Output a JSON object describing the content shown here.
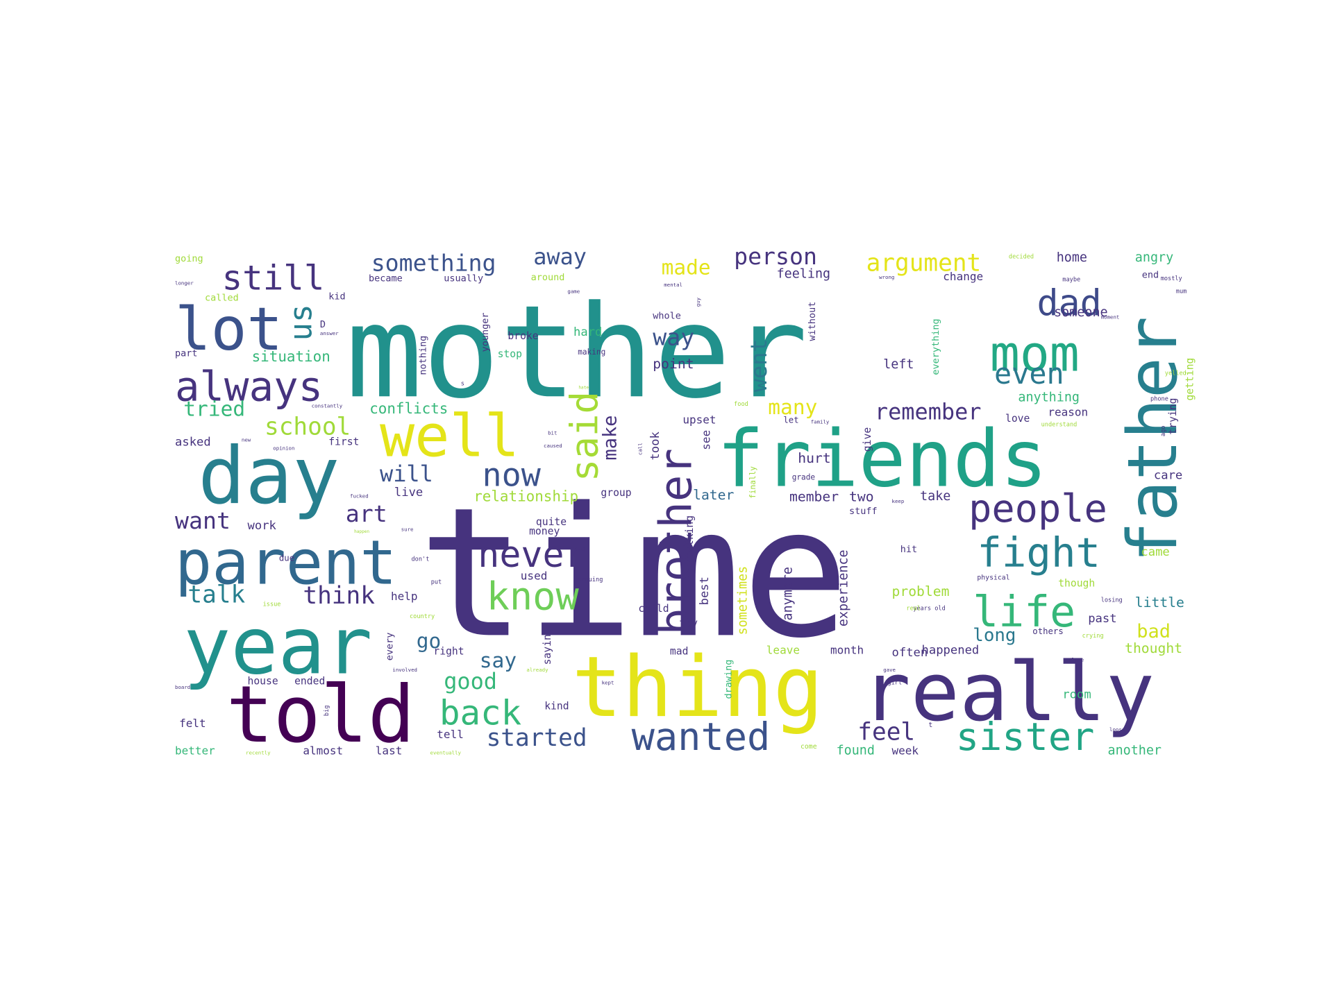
{
  "image": {
    "type": "word-cloud",
    "background": "#ffffff",
    "palette": [
      "#440154",
      "#46337e",
      "#365c8d",
      "#277f8e",
      "#1fa187",
      "#4ac16d",
      "#a0da39",
      "#fde725"
    ]
  },
  "words": [
    {
      "text": "time",
      "color": "#46337e"
    },
    {
      "text": "mother",
      "color": "#21918c"
    },
    {
      "text": "friends",
      "color": "#1fa187"
    },
    {
      "text": "thing",
      "color": "#e4e419"
    },
    {
      "text": "really",
      "color": "#46337e"
    },
    {
      "text": "father",
      "color": "#277f8e"
    },
    {
      "text": "day",
      "color": "#277f8e"
    },
    {
      "text": "year",
      "color": "#21918c"
    },
    {
      "text": "told",
      "color": "#440154"
    },
    {
      "text": "parent",
      "color": "#31688e"
    },
    {
      "text": "lot",
      "color": "#3b528b"
    },
    {
      "text": "well",
      "color": "#e4e419"
    },
    {
      "text": "mom",
      "color": "#22a884"
    },
    {
      "text": "brother",
      "color": "#46337e"
    },
    {
      "text": "always",
      "color": "#46337e"
    },
    {
      "text": "people",
      "color": "#46337e"
    },
    {
      "text": "sister",
      "color": "#21a585"
    },
    {
      "text": "life",
      "color": "#35b779"
    },
    {
      "text": "fight",
      "color": "#277f8e"
    },
    {
      "text": "know",
      "color": "#6ece58"
    },
    {
      "text": "wanted",
      "color": "#3b528b"
    },
    {
      "text": "said",
      "color": "#a5db36"
    },
    {
      "text": "never",
      "color": "#46337e"
    },
    {
      "text": "back",
      "color": "#35b779"
    },
    {
      "text": "still",
      "color": "#46337e"
    },
    {
      "text": "dad",
      "color": "#3e4a89"
    },
    {
      "text": "even",
      "color": "#2a788e"
    },
    {
      "text": "now",
      "color": "#3b528b"
    },
    {
      "text": "us",
      "color": "#277f8e"
    },
    {
      "text": "school",
      "color": "#a0da39"
    },
    {
      "text": "something",
      "color": "#3b528b"
    },
    {
      "text": "argument",
      "color": "#e4e419"
    },
    {
      "text": "person",
      "color": "#46337e"
    },
    {
      "text": "away",
      "color": "#3b528b"
    },
    {
      "text": "feel",
      "color": "#46337e"
    },
    {
      "text": "started",
      "color": "#3b528b"
    },
    {
      "text": "think",
      "color": "#46337e"
    },
    {
      "text": "remember",
      "color": "#46337e"
    },
    {
      "text": "went",
      "color": "#2a788e"
    },
    {
      "text": "good",
      "color": "#35b779"
    },
    {
      "text": "talk",
      "color": "#277f8e"
    },
    {
      "text": "want",
      "color": "#46337e"
    },
    {
      "text": "art",
      "color": "#46337e"
    },
    {
      "text": "will",
      "color": "#3b528b"
    },
    {
      "text": "tried",
      "color": "#35b779"
    },
    {
      "text": "way",
      "color": "#3b528b"
    },
    {
      "text": "made",
      "color": "#e4e419"
    },
    {
      "text": "many",
      "color": "#e4e419"
    },
    {
      "text": "make",
      "color": "#46337e"
    },
    {
      "text": "go",
      "color": "#31688e"
    },
    {
      "text": "say",
      "color": "#31688e"
    },
    {
      "text": "long",
      "color": "#2a788e"
    },
    {
      "text": "bad",
      "color": "#d0e11c"
    },
    {
      "text": "conflicts",
      "color": "#35b779"
    },
    {
      "text": "relationship",
      "color": "#a0da39"
    },
    {
      "text": "situation",
      "color": "#35b779"
    },
    {
      "text": "experience",
      "color": "#46337e"
    },
    {
      "text": "sometimes",
      "color": "#d0e11c"
    },
    {
      "text": "anymore",
      "color": "#46337e"
    },
    {
      "text": "member",
      "color": "#46337e"
    },
    {
      "text": "two",
      "color": "#46337e"
    },
    {
      "text": "hurt",
      "color": "#46337e"
    },
    {
      "text": "took",
      "color": "#46337e"
    },
    {
      "text": "point",
      "color": "#46337e"
    },
    {
      "text": "problem",
      "color": "#a0da39"
    },
    {
      "text": "later",
      "color": "#31688e"
    },
    {
      "text": "take",
      "color": "#46337e"
    },
    {
      "text": "best",
      "color": "#46337e"
    },
    {
      "text": "talking",
      "color": "#46337e"
    },
    {
      "text": "little",
      "color": "#277f8e"
    },
    {
      "text": "thought",
      "color": "#a0da39"
    },
    {
      "text": "another",
      "color": "#35b779"
    },
    {
      "text": "found",
      "color": "#35b779"
    },
    {
      "text": "week",
      "color": "#46337e"
    },
    {
      "text": "happened",
      "color": "#46337e"
    },
    {
      "text": "often",
      "color": "#46337e"
    },
    {
      "text": "month",
      "color": "#46337e"
    },
    {
      "text": "leave",
      "color": "#a0da39"
    },
    {
      "text": "home",
      "color": "#46337e"
    },
    {
      "text": "angry",
      "color": "#35b779"
    },
    {
      "text": "feeling",
      "color": "#46337e"
    },
    {
      "text": "change",
      "color": "#46337e"
    },
    {
      "text": "left",
      "color": "#46337e"
    },
    {
      "text": "someone",
      "color": "#46337e"
    },
    {
      "text": "anything",
      "color": "#35b779"
    },
    {
      "text": "reason",
      "color": "#46337e"
    },
    {
      "text": "love",
      "color": "#46337e"
    },
    {
      "text": "getting",
      "color": "#a0da39"
    },
    {
      "text": "trying",
      "color": "#46337e"
    },
    {
      "text": "care",
      "color": "#46337e"
    },
    {
      "text": "came",
      "color": "#a0da39"
    },
    {
      "text": "past",
      "color": "#46337e"
    },
    {
      "text": "room",
      "color": "#35b779"
    },
    {
      "text": "though",
      "color": "#a0da39"
    },
    {
      "text": "stop",
      "color": "#35b779"
    },
    {
      "text": "broke",
      "color": "#46337e"
    },
    {
      "text": "hard",
      "color": "#35b779"
    },
    {
      "text": "whole",
      "color": "#46337e"
    },
    {
      "text": "making",
      "color": "#46337e"
    },
    {
      "text": "upset",
      "color": "#46337e"
    },
    {
      "text": "see",
      "color": "#46337e"
    },
    {
      "text": "give",
      "color": "#46337e"
    },
    {
      "text": "first",
      "color": "#46337e"
    },
    {
      "text": "asked",
      "color": "#46337e"
    },
    {
      "text": "work",
      "color": "#46337e"
    },
    {
      "text": "help",
      "color": "#46337e"
    },
    {
      "text": "live",
      "color": "#46337e"
    },
    {
      "text": "group",
      "color": "#46337e"
    },
    {
      "text": "money",
      "color": "#46337e"
    },
    {
      "text": "quite",
      "color": "#46337e"
    },
    {
      "text": "used",
      "color": "#46337e"
    },
    {
      "text": "child",
      "color": "#46337e"
    },
    {
      "text": "try",
      "color": "#46337e"
    },
    {
      "text": "mad",
      "color": "#46337e"
    },
    {
      "text": "drawing",
      "color": "#35b779"
    },
    {
      "text": "kind",
      "color": "#46337e"
    },
    {
      "text": "saying",
      "color": "#46337e"
    },
    {
      "text": "every",
      "color": "#46337e"
    },
    {
      "text": "right",
      "color": "#46337e"
    },
    {
      "text": "tell",
      "color": "#46337e"
    },
    {
      "text": "house",
      "color": "#46337e"
    },
    {
      "text": "ended",
      "color": "#46337e"
    },
    {
      "text": "felt",
      "color": "#46337e"
    },
    {
      "text": "better",
      "color": "#35b779"
    },
    {
      "text": "almost",
      "color": "#46337e"
    },
    {
      "text": "last",
      "color": "#46337e"
    },
    {
      "text": "going",
      "color": "#a0da39"
    },
    {
      "text": "called",
      "color": "#a0da39"
    },
    {
      "text": "kid",
      "color": "#46337e"
    },
    {
      "text": "part",
      "color": "#46337e"
    },
    {
      "text": "became",
      "color": "#46337e"
    },
    {
      "text": "usually",
      "color": "#46337e"
    },
    {
      "text": "around",
      "color": "#a0da39"
    },
    {
      "text": "younger",
      "color": "#46337e"
    },
    {
      "text": "nothing",
      "color": "#46337e"
    },
    {
      "text": "without",
      "color": "#46337e"
    },
    {
      "text": "everything",
      "color": "#35b779"
    },
    {
      "text": "stuff",
      "color": "#46337e"
    },
    {
      "text": "grade",
      "color": "#46337e"
    },
    {
      "text": "finally",
      "color": "#a0da39"
    },
    {
      "text": "hit",
      "color": "#46337e"
    },
    {
      "text": "others",
      "color": "#46337e"
    },
    {
      "text": "physical",
      "color": "#46337e"
    },
    {
      "text": "years old",
      "color": "#46337e"
    },
    {
      "text": "real",
      "color": "#a0da39"
    },
    {
      "text": "crying",
      "color": "#a0da39"
    },
    {
      "text": "losing",
      "color": "#46337e"
    },
    {
      "text": "decided",
      "color": "#a0da39"
    },
    {
      "text": "wrong",
      "color": "#46337e"
    },
    {
      "text": "maybe",
      "color": "#46337e"
    },
    {
      "text": "mostly",
      "color": "#46337e"
    },
    {
      "text": "end",
      "color": "#46337e"
    },
    {
      "text": "mum",
      "color": "#46337e"
    },
    {
      "text": "moment",
      "color": "#46337e"
    },
    {
      "text": "yelled",
      "color": "#a0da39"
    },
    {
      "text": "phone",
      "color": "#46337e"
    },
    {
      "text": "understand",
      "color": "#a0da39"
    },
    {
      "text": "ago",
      "color": "#46337e"
    },
    {
      "text": "constantly",
      "color": "#46337e"
    },
    {
      "text": "opinion",
      "color": "#46337e"
    },
    {
      "text": "caused",
      "color": "#46337e"
    },
    {
      "text": "bit",
      "color": "#46337e"
    },
    {
      "text": "call",
      "color": "#46337e"
    },
    {
      "text": "family",
      "color": "#46337e"
    },
    {
      "text": "let",
      "color": "#46337e"
    },
    {
      "text": "food",
      "color": "#a0da39"
    },
    {
      "text": "keep",
      "color": "#46337e"
    },
    {
      "text": "due",
      "color": "#46337e"
    },
    {
      "text": "don't",
      "color": "#46337e"
    },
    {
      "text": "put",
      "color": "#46337e"
    },
    {
      "text": "arguing",
      "color": "#46337e"
    },
    {
      "text": "issue",
      "color": "#a0da39"
    },
    {
      "text": "country",
      "color": "#a0da39"
    },
    {
      "text": "involved",
      "color": "#46337e"
    },
    {
      "text": "already",
      "color": "#a0da39"
    },
    {
      "text": "kept",
      "color": "#46337e"
    },
    {
      "text": "big",
      "color": "#46337e"
    },
    {
      "text": "board",
      "color": "#46337e"
    },
    {
      "text": "recently",
      "color": "#a0da39"
    },
    {
      "text": "eventually",
      "color": "#a0da39"
    },
    {
      "text": "come",
      "color": "#a0da39"
    },
    {
      "text": "girl",
      "color": "#46337e"
    },
    {
      "text": "gave",
      "color": "#46337e"
    },
    {
      "text": "close",
      "color": "#46337e"
    },
    {
      "text": "loose",
      "color": "#46337e"
    },
    {
      "text": "longer",
      "color": "#46337e"
    },
    {
      "text": "answer",
      "color": "#46337e"
    },
    {
      "text": "game",
      "color": "#46337e"
    },
    {
      "text": "mental",
      "color": "#46337e"
    },
    {
      "text": "happen",
      "color": "#a0da39"
    },
    {
      "text": "sure",
      "color": "#46337e"
    },
    {
      "text": "fucked",
      "color": "#46337e"
    },
    {
      "text": "new",
      "color": "#46337e"
    },
    {
      "text": "guy",
      "color": "#46337e"
    },
    {
      "text": "hate",
      "color": "#a0da39"
    },
    {
      "text": "D",
      "color": "#46337e"
    },
    {
      "text": "t",
      "color": "#46337e"
    },
    {
      "text": "s",
      "color": "#46337e"
    }
  ]
}
